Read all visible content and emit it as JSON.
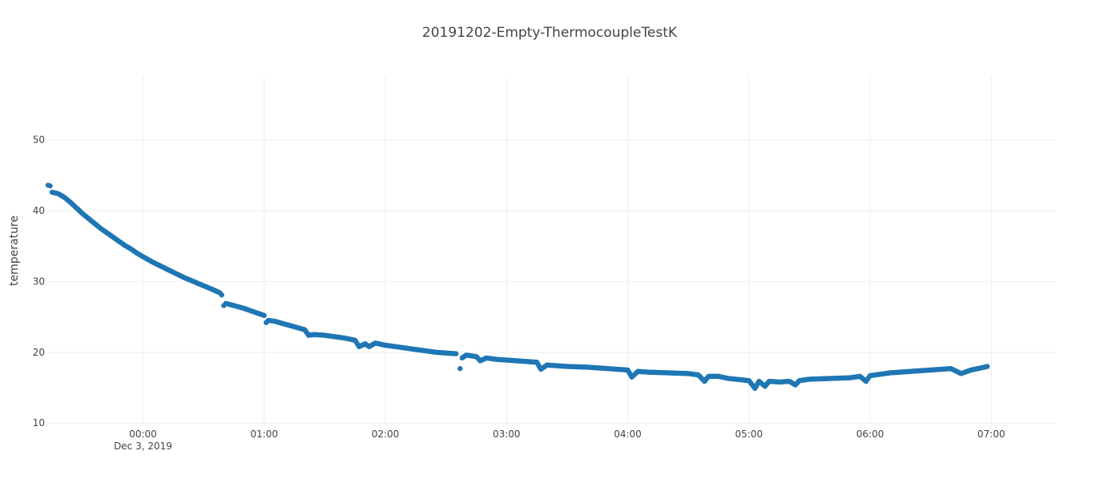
{
  "chart_data": {
    "type": "scatter",
    "title": "20191202-Empty-ThermocoupleTestK",
    "xlabel": "",
    "ylabel": "temperature",
    "x_axis_type": "date",
    "x_range": [
      "2019-12-02 23:13",
      "2019-12-03 07:32"
    ],
    "ylim": [
      9.8,
      59
    ],
    "grid": true,
    "legend": "none",
    "marker_color": "#1f77b4",
    "x_ticks": [
      {
        "value": "2019-12-03 00:00",
        "label": "00:00",
        "sublabel": "Dec 3, 2019"
      },
      {
        "value": "2019-12-03 01:00",
        "label": "01:00",
        "sublabel": ""
      },
      {
        "value": "2019-12-03 02:00",
        "label": "02:00",
        "sublabel": ""
      },
      {
        "value": "2019-12-03 03:00",
        "label": "03:00",
        "sublabel": ""
      },
      {
        "value": "2019-12-03 04:00",
        "label": "04:00",
        "sublabel": ""
      },
      {
        "value": "2019-12-03 05:00",
        "label": "05:00",
        "sublabel": ""
      },
      {
        "value": "2019-12-03 06:00",
        "label": "06:00",
        "sublabel": ""
      },
      {
        "value": "2019-12-03 07:00",
        "label": "07:00",
        "sublabel": ""
      }
    ],
    "y_ticks": [
      10,
      20,
      30,
      40,
      50
    ],
    "series": [
      {
        "x": [
          "2019-12-02 23:13",
          "2019-12-02 23:14",
          "2019-12-02 23:15",
          "2019-12-02 23:18",
          "2019-12-02 23:21",
          "2019-12-02 23:24",
          "2019-12-02 23:27",
          "2019-12-02 23:30",
          "2019-12-02 23:33",
          "2019-12-02 23:36",
          "2019-12-02 23:39",
          "2019-12-02 23:42",
          "2019-12-02 23:45",
          "2019-12-02 23:48",
          "2019-12-02 23:51",
          "2019-12-02 23:54",
          "2019-12-02 23:57",
          "2019-12-03 00:00",
          "2019-12-03 00:05",
          "2019-12-03 00:10",
          "2019-12-03 00:15",
          "2019-12-03 00:20",
          "2019-12-03 00:25",
          "2019-12-03 00:30",
          "2019-12-03 00:35",
          "2019-12-03 00:38",
          "2019-12-03 00:39",
          "2019-12-03 00:40",
          "2019-12-03 00:41",
          "2019-12-03 00:45",
          "2019-12-03 00:50",
          "2019-12-03 00:55",
          "2019-12-03 01:00",
          "2019-12-03 01:01",
          "2019-12-03 01:02",
          "2019-12-03 01:05",
          "2019-12-03 01:10",
          "2019-12-03 01:15",
          "2019-12-03 01:20",
          "2019-12-03 01:22",
          "2019-12-03 01:25",
          "2019-12-03 01:30",
          "2019-12-03 01:35",
          "2019-12-03 01:40",
          "2019-12-03 01:45",
          "2019-12-03 01:47",
          "2019-12-03 01:50",
          "2019-12-03 01:52",
          "2019-12-03 01:55",
          "2019-12-03 02:00",
          "2019-12-03 02:05",
          "2019-12-03 02:10",
          "2019-12-03 02:15",
          "2019-12-03 02:20",
          "2019-12-03 02:25",
          "2019-12-03 02:30",
          "2019-12-03 02:35",
          "2019-12-03 02:37",
          "2019-12-03 02:38",
          "2019-12-03 02:40",
          "2019-12-03 02:45",
          "2019-12-03 02:47",
          "2019-12-03 02:50",
          "2019-12-03 02:55",
          "2019-12-03 03:00",
          "2019-12-03 03:05",
          "2019-12-03 03:10",
          "2019-12-03 03:15",
          "2019-12-03 03:17",
          "2019-12-03 03:20",
          "2019-12-03 03:25",
          "2019-12-03 03:30",
          "2019-12-03 03:40",
          "2019-12-03 03:50",
          "2019-12-03 04:00",
          "2019-12-03 04:02",
          "2019-12-03 04:05",
          "2019-12-03 04:10",
          "2019-12-03 04:20",
          "2019-12-03 04:30",
          "2019-12-03 04:35",
          "2019-12-03 04:38",
          "2019-12-03 04:40",
          "2019-12-03 04:45",
          "2019-12-03 04:50",
          "2019-12-03 05:00",
          "2019-12-03 05:03",
          "2019-12-03 05:05",
          "2019-12-03 05:08",
          "2019-12-03 05:10",
          "2019-12-03 05:15",
          "2019-12-03 05:20",
          "2019-12-03 05:23",
          "2019-12-03 05:25",
          "2019-12-03 05:30",
          "2019-12-03 05:40",
          "2019-12-03 05:50",
          "2019-12-03 05:55",
          "2019-12-03 05:58",
          "2019-12-03 06:00",
          "2019-12-03 06:05",
          "2019-12-03 06:10",
          "2019-12-03 06:15",
          "2019-12-03 06:20",
          "2019-12-03 06:25",
          "2019-12-03 06:30",
          "2019-12-03 06:35",
          "2019-12-03 06:40",
          "2019-12-03 06:45",
          "2019-12-03 06:50",
          "2019-12-03 06:55",
          "2019-12-03 06:58"
        ],
        "y": [
          43.6,
          43.5,
          42.6,
          42.4,
          41.9,
          41.2,
          40.4,
          39.6,
          38.9,
          38.2,
          37.5,
          36.9,
          36.3,
          35.7,
          35.1,
          34.6,
          34.0,
          33.5,
          32.7,
          32.0,
          31.3,
          30.6,
          30.0,
          29.4,
          28.8,
          28.4,
          28.1,
          26.6,
          26.9,
          26.6,
          26.2,
          25.7,
          25.2,
          24.2,
          24.5,
          24.4,
          24.0,
          23.6,
          23.2,
          22.4,
          22.5,
          22.4,
          22.2,
          22.0,
          21.7,
          20.8,
          21.2,
          20.8,
          21.3,
          21.0,
          20.8,
          20.6,
          20.4,
          20.2,
          20.0,
          19.9,
          19.8,
          17.7,
          19.2,
          19.6,
          19.4,
          18.8,
          19.2,
          19.0,
          18.9,
          18.8,
          18.7,
          18.6,
          17.6,
          18.2,
          18.1,
          18.0,
          17.9,
          17.7,
          17.5,
          16.5,
          17.3,
          17.2,
          17.1,
          17.0,
          16.8,
          15.9,
          16.6,
          16.6,
          16.3,
          16.0,
          14.9,
          15.9,
          15.2,
          15.9,
          15.8,
          15.9,
          15.4,
          16.0,
          16.2,
          16.3,
          16.4,
          16.6,
          15.9,
          16.7,
          16.9,
          17.1,
          17.2,
          17.3,
          17.4,
          17.5,
          17.6,
          17.7,
          17.0,
          17.5,
          17.8,
          18.0
        ]
      }
    ]
  }
}
